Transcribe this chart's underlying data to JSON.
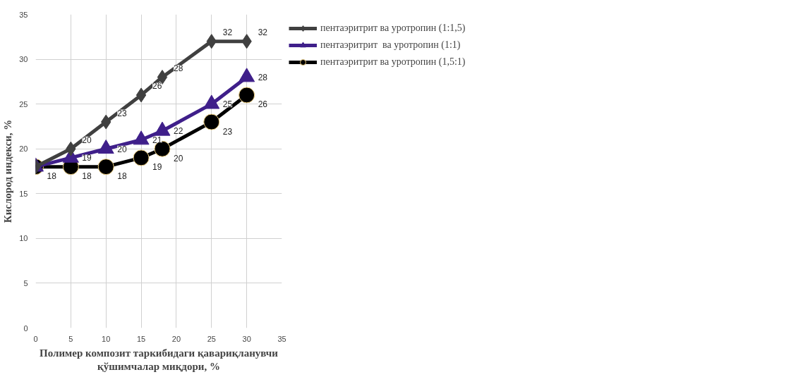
{
  "chart_data": {
    "type": "line",
    "xlabel": "Полимер композит таркибидаги қавариқланувчи\nқўшимчалар миқдори, %",
    "ylabel": "Кислород индекси, %",
    "x": [
      0,
      5,
      10,
      15,
      18,
      25,
      30
    ],
    "series": [
      {
        "name": "пентаэритрит ва уротропин (1:1,5)",
        "color": "#404040",
        "marker": "diamond",
        "values": [
          18,
          20,
          23,
          26,
          28,
          32,
          32
        ],
        "value_labels": [
          null,
          "20",
          "23",
          "26",
          "28",
          "32",
          "32"
        ]
      },
      {
        "name": "пентаэритрит  ва уротропин (1:1)",
        "color": "#3f1f8a",
        "marker": "triangle",
        "values": [
          18,
          19,
          20,
          21,
          22,
          25,
          28
        ],
        "value_labels": [
          null,
          "19",
          "20",
          "21",
          "22",
          "25",
          "28"
        ]
      },
      {
        "name": "пентаэритрит ва уротропин (1,5:1)",
        "color": "#000000",
        "marker": "circle",
        "values": [
          18,
          18,
          18,
          19,
          20,
          23,
          26
        ],
        "value_labels": [
          "18",
          "18",
          "18",
          "19",
          "20",
          "23",
          "26"
        ]
      }
    ],
    "xlim": [
      0,
      35
    ],
    "xticks": [
      0,
      5,
      10,
      15,
      20,
      25,
      30,
      35
    ],
    "ylim": [
      0,
      35
    ],
    "yticks": [
      0,
      5,
      10,
      15,
      20,
      25,
      30,
      35
    ],
    "grid": true,
    "legend": "right"
  }
}
